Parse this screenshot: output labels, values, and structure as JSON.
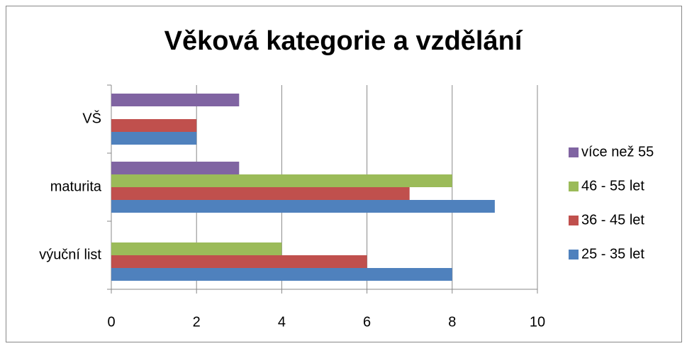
{
  "chart_data": {
    "type": "hbar",
    "title": "Věková kategorie a vzdělání",
    "categories": [
      "výuční list",
      "maturita",
      "VŠ"
    ],
    "series": [
      {
        "name": "25 - 35 let",
        "color": "#4f81bd",
        "values": [
          8,
          9,
          2
        ]
      },
      {
        "name": "36 - 45 let",
        "color": "#c0504d",
        "values": [
          6,
          7,
          2
        ]
      },
      {
        "name": "46 - 55 let",
        "color": "#9bbb59",
        "values": [
          4,
          8,
          0
        ]
      },
      {
        "name": "více než 55",
        "color": "#8064a2",
        "values": [
          0,
          3,
          3
        ]
      }
    ],
    "xlim": [
      0,
      10
    ],
    "xticks": [
      0,
      2,
      4,
      6,
      8,
      10
    ],
    "grid": true,
    "legend": "right"
  }
}
